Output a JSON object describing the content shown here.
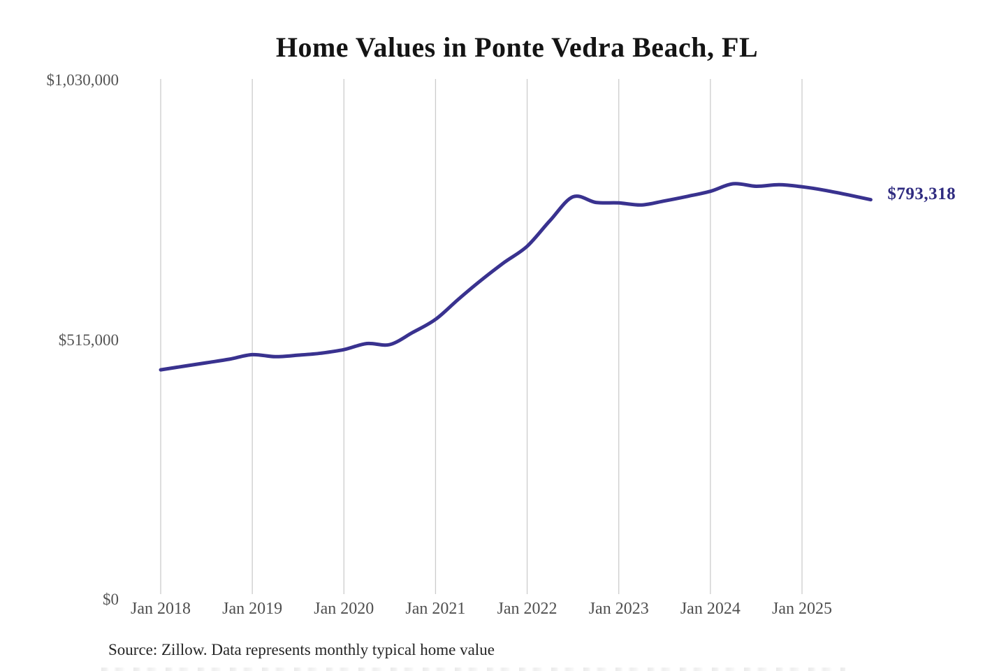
{
  "page": {
    "background": "#ffffff"
  },
  "chart": {
    "title": "Home Values in Ponte Vedra Beach, FL",
    "source_note": "Source: Zillow. Data represents monthly typical home value",
    "latest_value_label": "$793,318"
  },
  "chart_data": {
    "type": "line",
    "title": "Home Values in Ponte Vedra Beach, FL",
    "xlabel": "",
    "ylabel": "",
    "x_tick_labels": [
      "Jan 2018",
      "Jan 2019",
      "Jan 2020",
      "Jan 2021",
      "Jan 2022",
      "Jan 2023",
      "Jan 2024",
      "Jan 2025"
    ],
    "y_ticks": [
      {
        "value": 0,
        "label": "$0"
      },
      {
        "value": 515000,
        "label": "$515,000"
      },
      {
        "value": 1030000,
        "label": "$1,030,000"
      }
    ],
    "ylim": [
      0,
      1030000
    ],
    "grid": "vertical-only",
    "legend": "none",
    "colors": {
      "line": "#39328f",
      "end_label": "#2f2b80",
      "gridline": "#cccccc",
      "title": "#141414",
      "tick_text": "#4f4f4f"
    },
    "series": [
      {
        "name": "Monthly typical home value",
        "points": [
          [
            "2018-01",
            456000
          ],
          [
            "2018-04",
            463000
          ],
          [
            "2018-07",
            470000
          ],
          [
            "2018-10",
            477000
          ],
          [
            "2019-01",
            486000
          ],
          [
            "2019-04",
            482000
          ],
          [
            "2019-07",
            485000
          ],
          [
            "2019-10",
            489000
          ],
          [
            "2020-01",
            496000
          ],
          [
            "2020-04",
            508000
          ],
          [
            "2020-07",
            506000
          ],
          [
            "2020-10",
            530000
          ],
          [
            "2021-01",
            556000
          ],
          [
            "2021-04",
            596000
          ],
          [
            "2021-07",
            634000
          ],
          [
            "2021-10",
            669000
          ],
          [
            "2022-01",
            701000
          ],
          [
            "2022-04",
            752000
          ],
          [
            "2022-07",
            799000
          ],
          [
            "2022-10",
            788000
          ],
          [
            "2023-01",
            787000
          ],
          [
            "2023-04",
            783000
          ],
          [
            "2023-07",
            791000
          ],
          [
            "2023-10",
            800000
          ],
          [
            "2024-01",
            810000
          ],
          [
            "2024-04",
            825000
          ],
          [
            "2024-07",
            820000
          ],
          [
            "2024-10",
            823000
          ],
          [
            "2025-01",
            819000
          ],
          [
            "2025-04",
            812000
          ],
          [
            "2025-07",
            803000
          ],
          [
            "2025-10",
            793318
          ]
        ]
      }
    ],
    "end_label": {
      "text": "$793,318",
      "value": 793318,
      "date": "2025-10"
    }
  }
}
